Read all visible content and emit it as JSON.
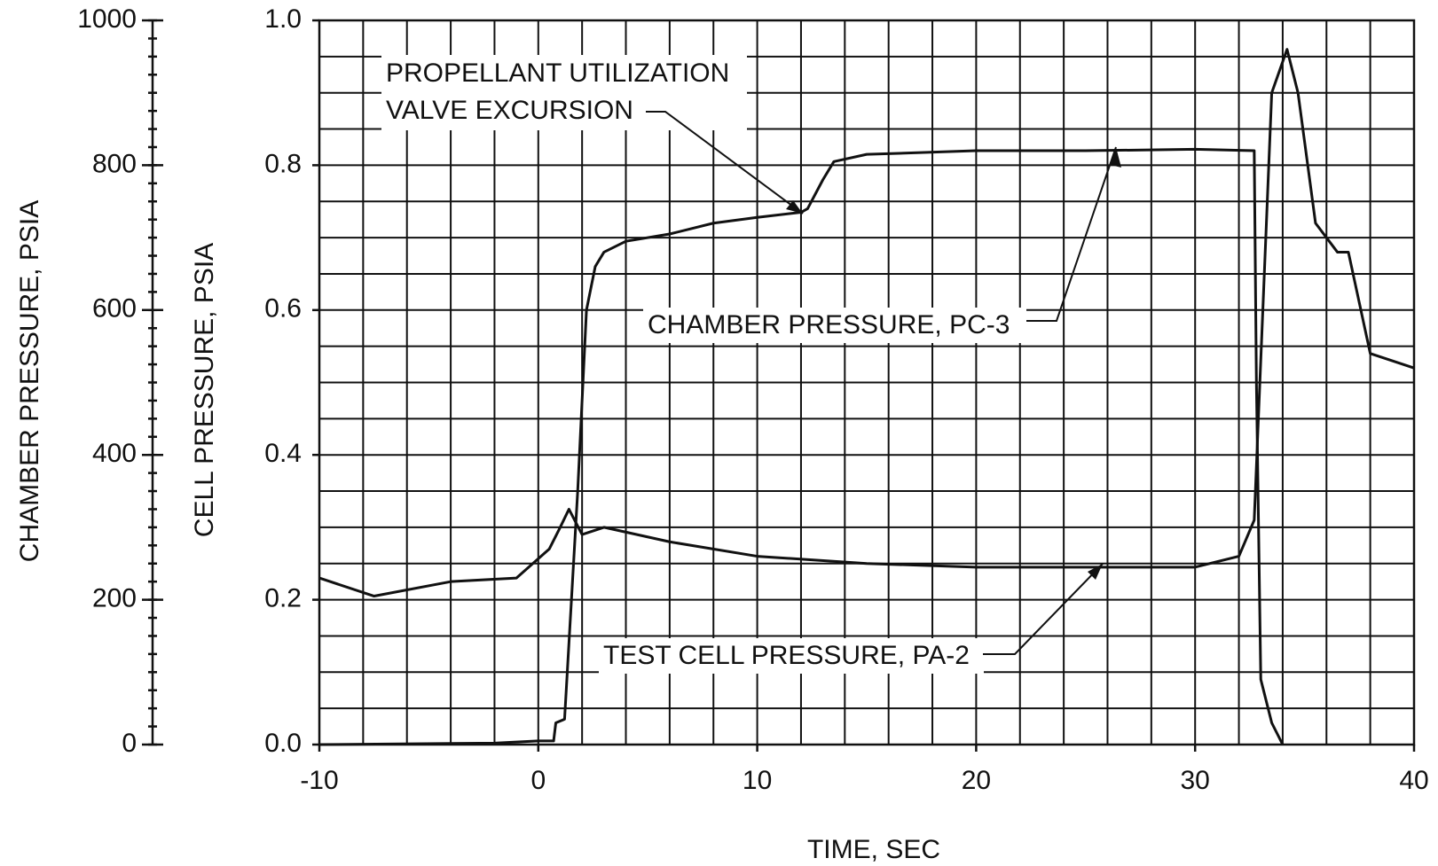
{
  "chart_data": {
    "type": "line",
    "x_label": "TIME, SEC",
    "y_label": "CELL PRESSURE, PSIA",
    "y2_label": "CHAMBER PRESSURE, PSIA",
    "xlim": [
      -10,
      40
    ],
    "xticks": [
      -10,
      0,
      10,
      20,
      30,
      40
    ],
    "xgrid": [
      -10,
      -8,
      -6,
      -4,
      -2,
      0,
      2,
      4,
      6,
      8,
      10,
      12,
      14,
      16,
      18,
      20,
      22,
      24,
      26,
      28,
      30,
      32,
      34,
      36,
      38,
      40
    ],
    "ylim": [
      0,
      1
    ],
    "yticks": [
      {
        "value": 0,
        "label": "0.0"
      },
      0.2,
      0.4,
      0.6,
      0.8,
      {
        "value": 1,
        "label": "1.0"
      }
    ],
    "ygrid": [
      0,
      0.05,
      0.1,
      0.15,
      0.2,
      0.25,
      0.3,
      0.35,
      0.4,
      0.45,
      0.5,
      0.55,
      0.6,
      0.65,
      0.7,
      0.75,
      0.8,
      0.85,
      0.9,
      0.95,
      1
    ],
    "y2lim": [
      0,
      1000
    ],
    "y2ticks": [
      0,
      200,
      400,
      600,
      800,
      1000
    ],
    "y2minor": [
      0,
      25,
      50,
      75,
      100,
      125,
      150,
      175,
      200,
      225,
      250,
      275,
      300,
      325,
      350,
      375,
      400,
      425,
      450,
      475,
      500,
      525,
      550,
      575,
      600,
      625,
      650,
      675,
      700,
      725,
      750,
      775,
      800,
      825,
      850,
      875,
      900,
      925,
      950,
      975,
      1000
    ],
    "grid": true,
    "series": [
      {
        "name": "CHAMBER PRESSURE, PC-3",
        "color": "#111111",
        "axis": "y2",
        "x": [
          -10,
          -2,
          0,
          0.7,
          0.8,
          1.2,
          1.4,
          1.8,
          2.2,
          2.6,
          3,
          4,
          6,
          8,
          10,
          12,
          12.3,
          13,
          13.5,
          15,
          20,
          25,
          30,
          32.7,
          32.8,
          33,
          33.5,
          34
        ],
        "values": [
          0,
          2,
          5,
          5,
          30,
          35,
          140,
          350,
          600,
          660,
          680,
          695,
          705,
          720,
          728,
          735,
          740,
          780,
          805,
          815,
          820,
          820,
          822,
          820,
          500,
          90,
          30,
          0
        ]
      },
      {
        "name": "TEST CELL PRESSURE, PA-2",
        "color": "#111111",
        "x": [
          -10,
          -7.5,
          -4,
          -1,
          0.5,
          1,
          1.4,
          2,
          3,
          6,
          10,
          15,
          20,
          30,
          32,
          32.7,
          33.5,
          34.2,
          34.7,
          35.5,
          36.5,
          37,
          38,
          40
        ],
        "values": [
          0.23,
          0.205,
          0.225,
          0.23,
          0.27,
          0.3,
          0.325,
          0.29,
          0.3,
          0.28,
          0.26,
          0.25,
          0.245,
          0.245,
          0.26,
          0.31,
          0.9,
          0.96,
          0.9,
          0.72,
          0.68,
          0.68,
          0.54,
          0.52
        ]
      }
    ],
    "annotations": [
      "PROPELLANT UTILIZATION",
      "VALVE EXCURSION"
    ]
  }
}
